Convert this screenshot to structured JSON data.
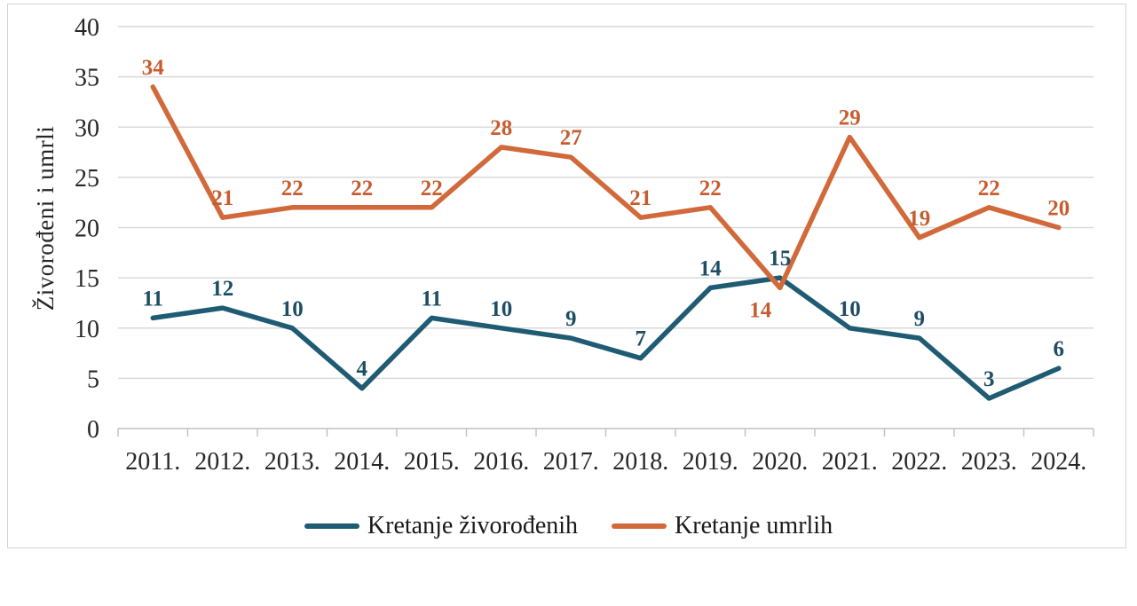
{
  "chart_data": {
    "type": "line",
    "title": "",
    "xlabel": "",
    "ylabel": "Živorođeni i umrli",
    "categories": [
      "2011.",
      "2012.",
      "2013.",
      "2014.",
      "2015.",
      "2016.",
      "2017.",
      "2018.",
      "2019.",
      "2020.",
      "2021.",
      "2022.",
      "2023.",
      "2024."
    ],
    "series": [
      {
        "name": "Kretanje živorođenih",
        "values": [
          11,
          12,
          10,
          4,
          11,
          10,
          9,
          7,
          14,
          15,
          10,
          9,
          3,
          6
        ],
        "color": "#1F5B73",
        "label_color": "#1D4D64"
      },
      {
        "name": "Kretanje umrlih",
        "values": [
          34,
          21,
          22,
          22,
          22,
          28,
          27,
          21,
          22,
          14,
          29,
          19,
          22,
          20
        ],
        "color": "#D2693A",
        "label_color": "#C75D2F",
        "label_overrides": {
          "9": {
            "position": "below",
            "dx": -22
          }
        }
      }
    ],
    "ylim": [
      0,
      40
    ],
    "yticks": [
      0,
      5,
      10,
      15,
      20,
      25,
      30,
      35,
      40
    ],
    "grid": true,
    "grid_color": "#d9d9d9",
    "axis_color": "#c0c0c0",
    "tick_label_color": "#262626",
    "legend_position": "bottom",
    "data_labels": true
  }
}
